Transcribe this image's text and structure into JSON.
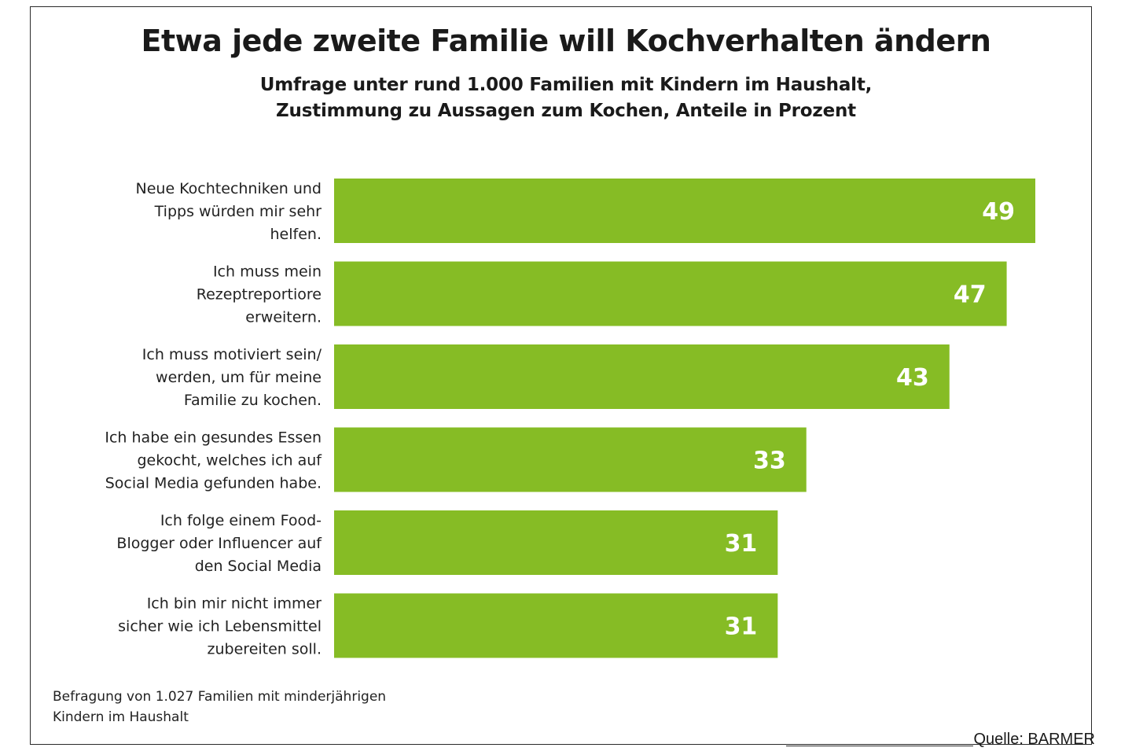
{
  "chart_data": {
    "type": "bar",
    "orientation": "horizontal",
    "title": "Etwa jede zweite Familie will Kochverhalten ändern",
    "subtitle": [
      "Umfrage unter rund 1.000 Familien mit Kindern im Haushalt,",
      "Zustimmung zu Aussagen zum Kochen, Anteile in Prozent"
    ],
    "categories": [
      [
        "Neue Kochtechniken und",
        "Tipps würden mir sehr",
        "helfen."
      ],
      [
        "Ich muss mein",
        "Rezeptreportiore",
        "erweitern."
      ],
      [
        "Ich muss motiviert sein/",
        "werden, um für meine",
        "Familie zu kochen."
      ],
      [
        "Ich habe ein gesundes Essen",
        "gekocht, welches ich auf",
        "Social Media gefunden habe."
      ],
      [
        "Ich folge einem Food-",
        "Blogger oder Influencer auf",
        "den Social Media"
      ],
      [
        "Ich bin mir nicht immer",
        "sicher wie ich Lebensmittel",
        "zubereiten soll."
      ]
    ],
    "values": [
      49,
      47,
      43,
      33,
      31,
      31
    ],
    "data_labels": [
      "49",
      "47",
      "43",
      "33",
      "31",
      "31"
    ],
    "bar_color": "#86bc25",
    "value_label_color": "#ffffff",
    "xlim": [
      0,
      49
    ],
    "grid": false,
    "legend": "none"
  },
  "footnote": [
    "Befragung von 1.027 Familien mit minderjährigen",
    "Kindern im Haushalt"
  ],
  "source": "Quelle: BARMER"
}
